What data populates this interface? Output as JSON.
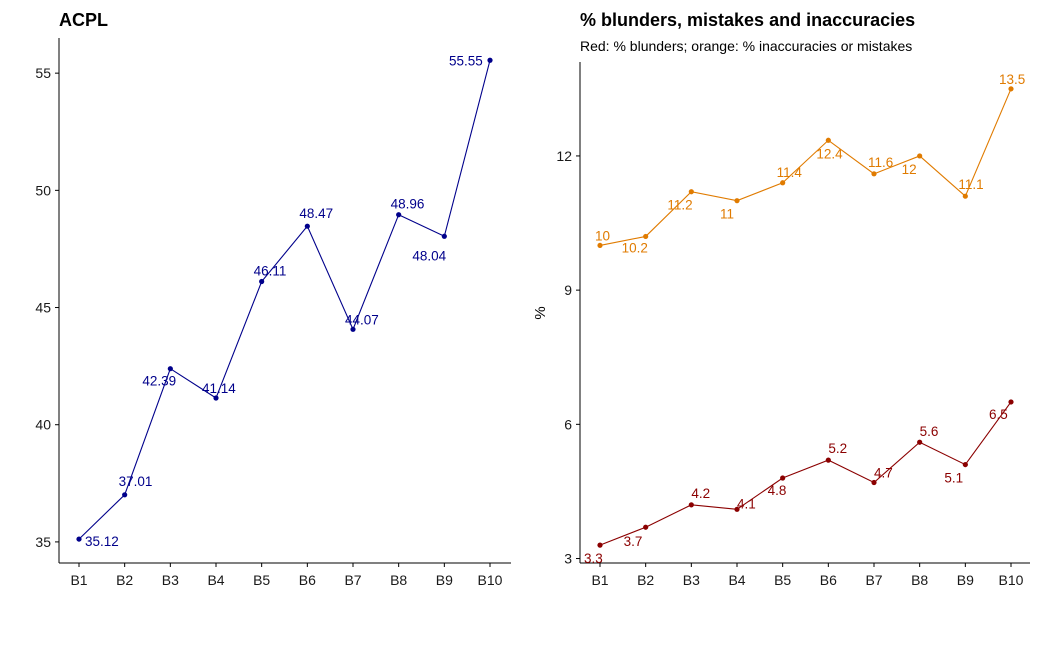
{
  "colors": {
    "acpl": "#00008B",
    "blunders": "#8B0000",
    "inaccuracies": "#E07B00"
  },
  "chart_data": [
    {
      "type": "line",
      "title": "ACPL",
      "xlabel": "",
      "ylabel": "",
      "categories": [
        "B1",
        "B2",
        "B3",
        "B4",
        "B5",
        "B6",
        "B7",
        "B8",
        "B9",
        "B10"
      ],
      "yticks": [
        35,
        40,
        45,
        50,
        55
      ],
      "ylim": [
        34.1,
        56.5
      ],
      "grid": false,
      "series": [
        {
          "color_key": "acpl",
          "values": [
            35.12,
            37.01,
            42.39,
            41.14,
            46.11,
            48.47,
            44.07,
            48.96,
            48.04,
            55.55
          ],
          "labels": [
            "35.12",
            "37.01",
            "42.39",
            "41.14",
            "46.11",
            "48.47",
            "44.07",
            "48.96",
            "48.04",
            "55.55"
          ]
        }
      ]
    },
    {
      "type": "line",
      "title": "% blunders, mistakes and inaccuracies",
      "subtitle": "Red: % blunders; orange: % inaccuracies or mistakes",
      "xlabel": "",
      "ylabel": "%",
      "categories": [
        "B1",
        "B2",
        "B3",
        "B4",
        "B5",
        "B6",
        "B7",
        "B8",
        "B9",
        "B10"
      ],
      "yticks": [
        3,
        6,
        9,
        12
      ],
      "ylim": [
        2.9,
        14.1
      ],
      "grid": false,
      "series": [
        {
          "color_key": "inaccuracies",
          "values": [
            10.0,
            10.2,
            11.2,
            11.0,
            11.4,
            12.35,
            11.6,
            12.0,
            11.1,
            13.5
          ],
          "labels": [
            "10",
            "10.2",
            "11.2",
            "11",
            "11.4",
            "12.4",
            "11.6",
            "12",
            "11.1",
            "13.5"
          ]
        },
        {
          "color_key": "blunders",
          "values": [
            3.3,
            3.7,
            4.2,
            4.1,
            4.8,
            5.2,
            4.7,
            5.6,
            5.1,
            6.5
          ],
          "labels": [
            "3.3",
            "3.7",
            "4.2",
            "4.1",
            "4.8",
            "5.2",
            "4.7",
            "5.6",
            "5.1",
            "6.5"
          ]
        }
      ]
    }
  ]
}
